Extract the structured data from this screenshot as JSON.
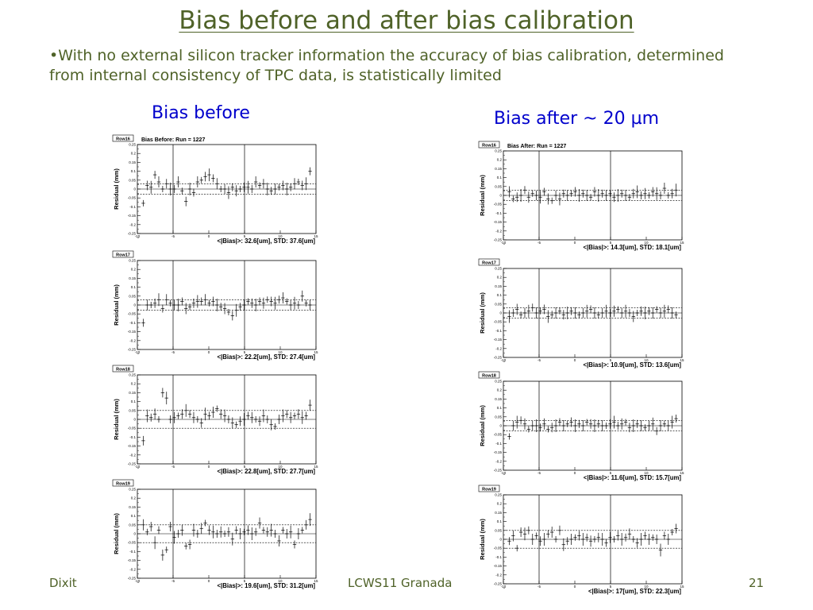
{
  "title": "Bias before and after bias calibration",
  "bullet": "•With no external silicon tracker information the accuracy of bias calibration, determined from internal consistency of TPC data, is statistically limited",
  "columns": {
    "before": "Bias before",
    "after": "Bias after ~ 20 µm"
  },
  "footer": {
    "left": "Dixit",
    "center": "LCWS11 Granada",
    "page": "21"
  },
  "chart_data": [
    {
      "type": "scatter",
      "column": "before",
      "row_label": "Row16",
      "title": "Bias Before: Run = 1227",
      "ylabel": "Residual (mm)",
      "stats": "<|Bias|>: 32.6[um], STD: 37.6[um]",
      "ylim": [
        -0.25,
        0.25
      ],
      "xlim": [
        -10,
        15
      ],
      "y_ticks": [
        "0.25",
        "0.2",
        "0.15",
        "0.1",
        "0.05",
        "0",
        "-0.05",
        "-0.1",
        "-0.15",
        "-0.2",
        "-0.25"
      ],
      "x_ticks": [
        "-10",
        "-5",
        "0",
        "5",
        "10",
        "15"
      ],
      "band": [
        0.03,
        -0.03
      ],
      "vlines": [
        -5,
        5
      ],
      "y": [
        -0.08,
        0.02,
        0.01,
        0.08,
        0.04,
        0.0,
        0.03,
        0.0,
        0.0,
        0.04,
        -0.01,
        -0.07,
        0.0,
        -0.02,
        0.04,
        0.05,
        0.07,
        0.08,
        0.06,
        0.03,
        0.0,
        0.0,
        -0.02,
        0.01,
        -0.01,
        0.0,
        0.01,
        0.01,
        0.0,
        0.04,
        0.02,
        0.03,
        0.0,
        -0.01,
        0.0,
        0.01,
        0.02,
        0.0,
        0.01,
        0.03,
        0.04,
        0.02,
        0.03,
        0.1
      ]
    },
    {
      "type": "scatter",
      "column": "after",
      "row_label": "Row16",
      "title": "Bias After: Run = 1227",
      "ylabel": "Residual (mm)",
      "stats": "<|Bias|>: 14.3[um], STD: 18.1[um]",
      "ylim": [
        -0.25,
        0.25
      ],
      "xlim": [
        -10,
        15
      ],
      "y_ticks": [
        "0.25",
        "0.2",
        "0.15",
        "0.1",
        "0.05",
        "0",
        "-0.05",
        "-0.1",
        "-0.15",
        "-0.2",
        "-0.25"
      ],
      "x_ticks": [
        "-10",
        "-5",
        "0",
        "5",
        "10",
        "15"
      ],
      "band": [
        0.03,
        -0.03
      ],
      "vlines": [
        -5,
        5
      ],
      "y": [
        0.02,
        -0.02,
        -0.01,
        0.0,
        0.03,
        -0.01,
        0.01,
        0.0,
        -0.01,
        0.02,
        -0.02,
        -0.03,
        0.0,
        -0.02,
        0.01,
        0.0,
        0.01,
        0.02,
        0.0,
        0.01,
        0.0,
        -0.01,
        0.02,
        0.0,
        0.01,
        0.0,
        0.01,
        -0.01,
        0.0,
        0.01,
        0.0,
        -0.01,
        0.01,
        0.02,
        0.0,
        0.01,
        0.0,
        0.02,
        0.01,
        0.0,
        0.04,
        0.0,
        0.01,
        0.03
      ]
    },
    {
      "type": "scatter",
      "column": "before",
      "row_label": "Row17",
      "title": "",
      "ylabel": "Residual (mm)",
      "stats": "<|Bias|>: 22.2[um], STD: 27.4[um]",
      "ylim": [
        -0.25,
        0.25
      ],
      "xlim": [
        -10,
        15
      ],
      "y_ticks": [
        "0.25",
        "0.2",
        "0.15",
        "0.1",
        "0.05",
        "0",
        "-0.05",
        "-0.1",
        "-0.15",
        "-0.2",
        "-0.25"
      ],
      "x_ticks": [
        "-10",
        "-5",
        "0",
        "5",
        "10",
        "15"
      ],
      "band": [
        0.03,
        -0.03
      ],
      "vlines": [
        -5,
        5
      ],
      "y": [
        -0.1,
        0.0,
        0.0,
        0.01,
        0.03,
        -0.02,
        0.03,
        0.01,
        0.0,
        0.0,
        0.02,
        -0.02,
        -0.01,
        0.01,
        0.02,
        0.02,
        0.03,
        0.01,
        0.02,
        0.0,
        -0.01,
        -0.02,
        -0.04,
        -0.06,
        -0.03,
        -0.01,
        0.0,
        0.02,
        0.01,
        0.0,
        0.02,
        0.01,
        0.03,
        0.02,
        0.01,
        0.03,
        0.04,
        0.02,
        0.0,
        0.01,
        0.0,
        0.05,
        0.01,
        0.0
      ]
    },
    {
      "type": "scatter",
      "column": "after",
      "row_label": "Row17",
      "title": "",
      "ylabel": "Residual (mm)",
      "stats": "<|Bias|>: 10.9[um], STD: 13.6[um]",
      "ylim": [
        -0.25,
        0.25
      ],
      "xlim": [
        -10,
        15
      ],
      "y_ticks": [
        "0.25",
        "0.2",
        "0.15",
        "0.1",
        "0.05",
        "0",
        "-0.05",
        "-0.1",
        "-0.15",
        "-0.2",
        "-0.25"
      ],
      "x_ticks": [
        "-10",
        "-5",
        "0",
        "5",
        "10",
        "15"
      ],
      "band": [
        0.03,
        -0.03
      ],
      "vlines": [
        -5,
        5
      ],
      "y": [
        -0.02,
        0.0,
        0.02,
        -0.01,
        0.0,
        0.01,
        0.03,
        0.0,
        0.01,
        0.02,
        -0.02,
        -0.01,
        0.0,
        0.01,
        -0.01,
        0.0,
        0.01,
        0.0,
        -0.01,
        0.0,
        0.01,
        0.02,
        0.0,
        -0.01,
        0.0,
        0.01,
        0.0,
        0.01,
        0.02,
        0.0,
        0.01,
        0.0,
        -0.02,
        0.0,
        0.01,
        0.0,
        0.01,
        0.0,
        0.02,
        0.0,
        0.01,
        0.02,
        0.0,
        -0.01
      ]
    },
    {
      "type": "scatter",
      "column": "before",
      "row_label": "Row18",
      "title": "",
      "ylabel": "Residual (mm)",
      "stats": "<|Bias|>: 22.8[um], STD: 27.7[um]",
      "ylim": [
        -0.25,
        0.25
      ],
      "xlim": [
        -10,
        15
      ],
      "y_ticks": [
        "0.25",
        "0.2",
        "0.15",
        "0.1",
        "0.05",
        "0",
        "-0.05",
        "-0.1",
        "-0.15",
        "-0.2",
        "-0.25"
      ],
      "x_ticks": [
        "-10",
        "-5",
        "0",
        "5",
        "10",
        "15"
      ],
      "band": [
        0.05,
        -0.05
      ],
      "vlines": [
        -5,
        5
      ],
      "y": [
        -0.12,
        0.02,
        0.01,
        0.03,
        0.0,
        0.15,
        0.12,
        0.0,
        0.01,
        0.02,
        0.03,
        0.05,
        0.03,
        0.01,
        0.0,
        -0.02,
        0.03,
        0.02,
        0.04,
        0.06,
        0.03,
        0.02,
        0.0,
        -0.02,
        -0.03,
        -0.01,
        0.0,
        0.02,
        0.01,
        0.0,
        -0.01,
        0.02,
        0.0,
        -0.03,
        -0.04,
        0.0,
        0.02,
        0.03,
        0.01,
        0.02,
        0.03,
        0.01,
        0.02,
        0.08
      ]
    },
    {
      "type": "scatter",
      "column": "after",
      "row_label": "Row18",
      "title": "",
      "ylabel": "Residual (mm)",
      "stats": "<|Bias|>: 11.6[um], STD: 15.7[um]",
      "ylim": [
        -0.25,
        0.25
      ],
      "xlim": [
        -10,
        15
      ],
      "y_ticks": [
        "0.25",
        "0.2",
        "0.15",
        "0.1",
        "0.05",
        "0",
        "-0.05",
        "-0.1",
        "-0.15",
        "-0.2",
        "-0.25"
      ],
      "x_ticks": [
        "-10",
        "-5",
        "0",
        "5",
        "10",
        "15"
      ],
      "band": [
        0.03,
        -0.03
      ],
      "vlines": [
        -5,
        5
      ],
      "y": [
        -0.06,
        0.0,
        0.02,
        0.03,
        0.01,
        -0.02,
        0.0,
        0.0,
        -0.01,
        0.01,
        -0.02,
        -0.01,
        0.0,
        0.02,
        0.0,
        0.01,
        0.02,
        0.0,
        0.01,
        0.0,
        0.02,
        0.01,
        0.0,
        0.01,
        0.0,
        0.0,
        0.01,
        0.02,
        0.0,
        0.01,
        0.02,
        -0.01,
        0.0,
        0.01,
        0.0,
        -0.01,
        0.0,
        0.01,
        -0.03,
        0.0,
        0.01,
        0.0,
        0.02,
        0.04
      ]
    },
    {
      "type": "scatter",
      "column": "before",
      "row_label": "Row19",
      "title": "",
      "ylabel": "Residual (mm)",
      "stats": "<|Bias|>: 19.6[um], STD: 31.2[um]",
      "ylim": [
        -0.25,
        0.25
      ],
      "xlim": [
        -10,
        15
      ],
      "y_ticks": [
        "0.25",
        "0.2",
        "0.15",
        "0.1",
        "0.05",
        "0",
        "-0.05",
        "-0.1",
        "-0.15",
        "-0.2",
        "-0.25"
      ],
      "x_ticks": [
        "-10",
        "-5",
        "0",
        "5",
        "10",
        "15"
      ],
      "band": [
        0.05,
        -0.05
      ],
      "vlines": [
        -5,
        5
      ],
      "y": [
        0.05,
        0.01,
        0.04,
        -0.05,
        0.02,
        -0.12,
        -0.09,
        0.04,
        -0.02,
        0.0,
        0.02,
        -0.07,
        -0.06,
        0.02,
        0.0,
        0.03,
        0.06,
        0.02,
        0.01,
        0.0,
        0.01,
        0.0,
        0.01,
        -0.03,
        0.02,
        0.0,
        0.01,
        0.02,
        0.0,
        0.01,
        0.06,
        0.02,
        0.01,
        0.02,
        0.0,
        -0.04,
        0.02,
        0.0,
        0.01,
        -0.06,
        0.0,
        0.02,
        0.05,
        0.08
      ]
    },
    {
      "type": "scatter",
      "column": "after",
      "row_label": "Row19",
      "title": "",
      "ylabel": "Residual (mm)",
      "stats": "<|Bias|>: 17[um], STD: 22.3[um]",
      "ylim": [
        -0.25,
        0.25
      ],
      "xlim": [
        -10,
        15
      ],
      "y_ticks": [
        "0.25",
        "0.2",
        "0.15",
        "0.1",
        "0.05",
        "0",
        "-0.05",
        "-0.1",
        "-0.15",
        "-0.2",
        "-0.25"
      ],
      "x_ticks": [
        "-10",
        "-5",
        "0",
        "5",
        "10",
        "15"
      ],
      "band": [
        0.05,
        -0.05
      ],
      "vlines": [
        -5,
        5
      ],
      "y": [
        -0.01,
        0.02,
        -0.05,
        0.04,
        0.03,
        0.05,
        0.0,
        0.02,
        -0.01,
        0.0,
        0.03,
        0.04,
        0.0,
        0.05,
        -0.03,
        -0.01,
        0.0,
        0.01,
        0.02,
        0.0,
        0.01,
        -0.01,
        0.0,
        0.01,
        0.0,
        -0.02,
        0.01,
        0.0,
        0.02,
        0.0,
        0.01,
        0.03,
        0.0,
        -0.02,
        0.0,
        0.02,
        0.0,
        0.01,
        0.0,
        -0.06,
        0.02,
        0.0,
        0.04,
        0.06
      ]
    }
  ]
}
